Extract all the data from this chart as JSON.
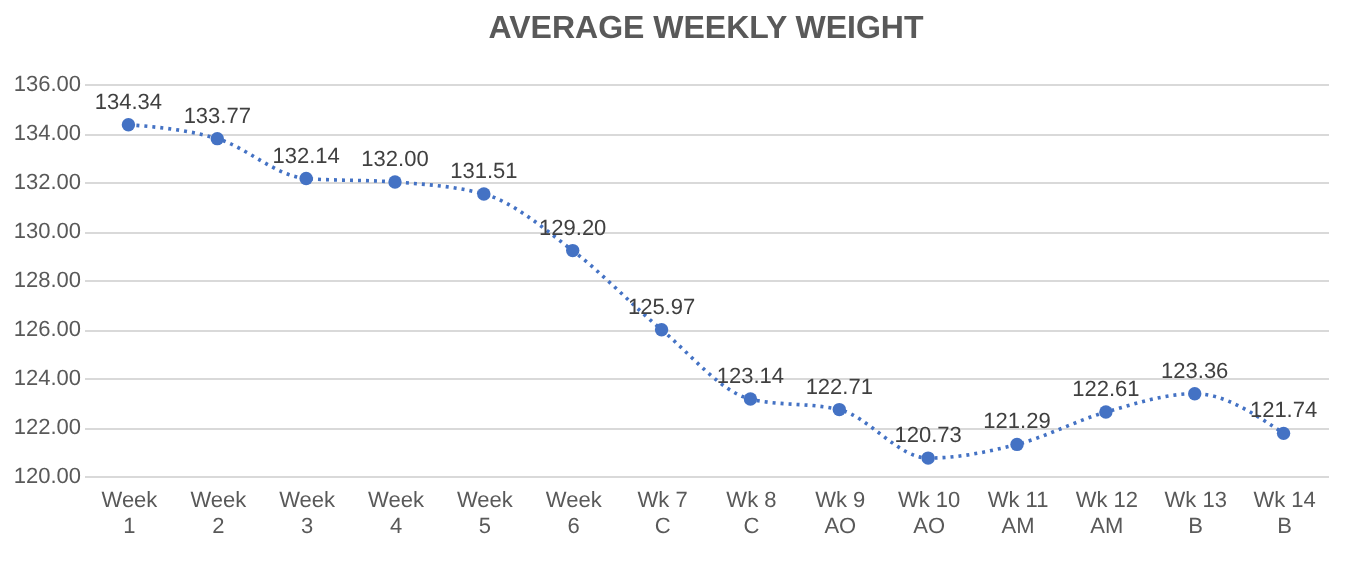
{
  "chart_data": {
    "type": "line",
    "title": "AVERAGE WEEKLY WEIGHT",
    "categories": [
      "Week\n1",
      "Week\n2",
      "Week\n3",
      "Week\n4",
      "Week\n5",
      "Week\n6",
      "Wk 7\nC",
      "Wk 8\nC",
      "Wk 9\nAO",
      "Wk 10\nAO",
      "Wk 11\nAM",
      "Wk 12\nAM",
      "Wk 13\nB",
      "Wk 14\nB"
    ],
    "series": [
      {
        "color": "#4472c4",
        "values": [
          134.34,
          133.77,
          132.14,
          132.0,
          131.51,
          129.2,
          125.97,
          123.14,
          122.71,
          120.73,
          121.29,
          122.61,
          123.36,
          121.74
        ],
        "value_labels": [
          "134.34",
          "133.77",
          "132.14",
          "132.00",
          "131.51",
          "129.20",
          "125.97",
          "123.14",
          "122.71",
          "120.73",
          "121.29",
          "122.61",
          "123.36",
          "121.74"
        ]
      }
    ],
    "ylim": [
      120,
      136
    ],
    "yticks": [
      {
        "value": 120,
        "label": "120.00"
      },
      {
        "value": 122,
        "label": "122.00"
      },
      {
        "value": 124,
        "label": "124.00"
      },
      {
        "value": 126,
        "label": "126.00"
      },
      {
        "value": 128,
        "label": "128.00"
      },
      {
        "value": 130,
        "label": "130.00"
      },
      {
        "value": 132,
        "label": "132.00"
      },
      {
        "value": 134,
        "label": "134.00"
      },
      {
        "value": 136,
        "label": "136.00"
      }
    ],
    "grid": "y",
    "marker": "circle",
    "line_style": "dotted"
  }
}
